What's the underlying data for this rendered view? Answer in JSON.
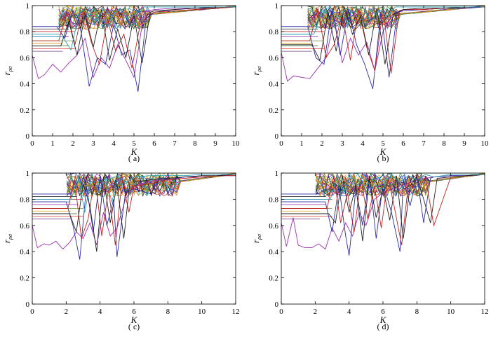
{
  "chart_data": [
    {
      "type": "line",
      "panel": "a",
      "caption": "( a)",
      "xlabel": "K",
      "ylabel": "r",
      "ylabel_sub": "ρσ",
      "xlim": [
        0,
        10
      ],
      "ylim": [
        0,
        1
      ],
      "xticks": [
        "0",
        "1",
        "2",
        "3",
        "4",
        "5",
        "6",
        "7",
        "8",
        "9",
        "10"
      ],
      "yticks": [
        "0",
        "0.2",
        "0.4",
        "0.6",
        "0.8",
        "1"
      ],
      "grid": false,
      "baselines": [
        0.84,
        0.82,
        0.8,
        0.78,
        0.76,
        0.73,
        0.71,
        0.69,
        0.67,
        0.65
      ],
      "series": [
        {
          "x": [
            0,
            0.3,
            0.6,
            1,
            1.4,
            1.8,
            2.2,
            2.6,
            3,
            3.4,
            3.8,
            4.2,
            4.6,
            5,
            5.5,
            6,
            7,
            8,
            9,
            10
          ],
          "y": [
            0.62,
            0.44,
            0.47,
            0.55,
            0.49,
            0.56,
            0.62,
            0.75,
            0.45,
            0.6,
            0.52,
            0.7,
            0.58,
            0.45,
            0.95,
            0.97,
            0.98,
            0.98,
            0.99,
            0.99
          ]
        },
        {
          "x": [
            0,
            1.2,
            1.6,
            2,
            2.4,
            2.8,
            3.2,
            3.6,
            4,
            4.4,
            4.8,
            5.2,
            5.6,
            6,
            7,
            8,
            9,
            10
          ],
          "y": [
            0.84,
            0.84,
            0.75,
            0.96,
            0.8,
            0.38,
            0.6,
            0.55,
            0.85,
            0.62,
            0.66,
            0.34,
            0.9,
            0.95,
            0.97,
            0.98,
            0.98,
            0.99
          ]
        },
        {
          "x": [
            0,
            1.3,
            1.7,
            2.1,
            2.5,
            2.9,
            3.3,
            3.7,
            4.1,
            4.5,
            4.9,
            5.3,
            5.7,
            6,
            7,
            8,
            9,
            10
          ],
          "y": [
            0.73,
            0.73,
            0.95,
            0.7,
            0.98,
            0.72,
            0.55,
            0.9,
            0.65,
            0.78,
            0.52,
            0.85,
            0.93,
            0.95,
            0.96,
            0.97,
            0.98,
            0.99
          ]
        },
        {
          "x": [
            0,
            1.4,
            1.8,
            2.2,
            2.6,
            3,
            3.4,
            3.8,
            4.2,
            4.6,
            5,
            5.4,
            5.8,
            6,
            7,
            8,
            9,
            10
          ],
          "y": [
            0.69,
            0.69,
            0.88,
            0.62,
            0.93,
            0.68,
            0.97,
            0.58,
            0.82,
            0.6,
            0.92,
            0.56,
            0.95,
            0.96,
            0.97,
            0.98,
            0.99,
            0.99
          ]
        },
        {
          "x": [
            0,
            1.5,
            1.9,
            2.3,
            2.7,
            3.1,
            3.5,
            3.9,
            4.3,
            4.7,
            5.1,
            5.5,
            6,
            7,
            8,
            9,
            10
          ],
          "y": [
            0.76,
            0.76,
            0.66,
            0.94,
            0.99,
            0.88,
            0.97,
            0.92,
            0.98,
            0.9,
            0.94,
            0.99,
            0.99,
            0.99,
            0.99,
            0.99,
            0.99
          ]
        }
      ]
    },
    {
      "type": "line",
      "panel": "b",
      "caption": "( b)",
      "xlabel": "K",
      "ylabel": "r",
      "ylabel_sub": "ρσ",
      "xlim": [
        0,
        10
      ],
      "ylim": [
        0,
        1
      ],
      "xticks": [
        "0",
        "1",
        "2",
        "3",
        "4",
        "5",
        "6",
        "7",
        "8",
        "9",
        "10"
      ],
      "yticks": [
        "0",
        "0.2",
        "0.4",
        "0.6",
        "0.8",
        "1"
      ],
      "grid": false,
      "baselines": [
        0.84,
        0.82,
        0.8,
        0.78,
        0.76,
        0.73,
        0.71,
        0.69,
        0.67,
        0.65
      ],
      "series": [
        {
          "x": [
            0,
            0.3,
            0.6,
            1,
            1.4,
            1.8,
            2.2,
            2.6,
            3,
            3.4,
            3.8,
            4.2,
            4.6,
            5,
            5.5,
            6,
            7,
            8,
            9,
            10
          ],
          "y": [
            0.64,
            0.42,
            0.46,
            0.45,
            0.44,
            0.52,
            0.6,
            0.9,
            0.56,
            0.75,
            0.62,
            0.72,
            0.5,
            0.8,
            0.94,
            0.96,
            0.97,
            0.98,
            0.98,
            0.99
          ]
        },
        {
          "x": [
            0,
            1.3,
            1.7,
            2.1,
            2.5,
            2.9,
            3.3,
            3.7,
            4.1,
            4.5,
            4.9,
            5.3,
            5.7,
            6,
            7,
            8,
            9,
            10
          ],
          "y": [
            0.84,
            0.84,
            0.6,
            0.55,
            0.98,
            0.62,
            0.97,
            0.7,
            0.55,
            0.36,
            0.95,
            0.45,
            0.95,
            0.96,
            0.97,
            0.98,
            0.98,
            0.99
          ]
        },
        {
          "x": [
            0,
            1.4,
            1.8,
            2.2,
            2.6,
            3,
            3.4,
            3.8,
            4.2,
            4.6,
            5,
            5.4,
            5.8,
            6,
            7,
            8,
            9,
            10
          ],
          "y": [
            0.73,
            0.73,
            0.98,
            0.6,
            0.7,
            0.93,
            0.58,
            0.98,
            0.68,
            0.5,
            0.97,
            0.48,
            0.96,
            0.97,
            0.97,
            0.98,
            0.99,
            0.99
          ]
        },
        {
          "x": [
            0,
            1.5,
            1.9,
            2.3,
            2.7,
            3.1,
            3.5,
            3.9,
            4.3,
            4.7,
            5.1,
            5.5,
            6,
            7,
            8,
            9,
            10
          ],
          "y": [
            0.7,
            0.7,
            0.58,
            0.95,
            0.65,
            0.99,
            0.78,
            0.92,
            0.62,
            0.98,
            0.55,
            0.93,
            0.97,
            0.98,
            0.98,
            0.99,
            0.99
          ]
        },
        {
          "x": [
            0,
            1.6,
            2,
            2.4,
            2.8,
            3.2,
            3.6,
            4,
            4.4,
            4.8,
            5.2,
            5.6,
            6,
            7,
            8,
            9,
            10
          ],
          "y": [
            0.78,
            0.78,
            0.96,
            0.99,
            0.9,
            0.98,
            0.95,
            0.99,
            0.88,
            0.97,
            0.92,
            0.99,
            0.99,
            0.99,
            0.99,
            0.99,
            0.99
          ]
        }
      ]
    },
    {
      "type": "line",
      "panel": "c",
      "caption": "( c)",
      "xlabel": "K",
      "ylabel": "r",
      "ylabel_sub": "ρσ",
      "xlim": [
        0,
        12
      ],
      "ylim": [
        0,
        1
      ],
      "xticks": [
        "0",
        "2",
        "4",
        "6",
        "8",
        "10",
        "12"
      ],
      "yticks": [
        "0",
        "0.2",
        "0.4",
        "0.6",
        "0.8",
        "1"
      ],
      "grid": false,
      "baselines": [
        0.84,
        0.82,
        0.8,
        0.78,
        0.76,
        0.73,
        0.71,
        0.69,
        0.67,
        0.65
      ],
      "series": [
        {
          "x": [
            0,
            0.3,
            0.7,
            1,
            1.4,
            1.8,
            2.2,
            2.6,
            3,
            3.4,
            3.8,
            4.2,
            4.6,
            5,
            5.5,
            6,
            7,
            8,
            9,
            10,
            11,
            12
          ],
          "y": [
            0.6,
            0.43,
            0.46,
            0.45,
            0.48,
            0.42,
            0.47,
            0.55,
            0.5,
            0.62,
            0.45,
            0.7,
            0.52,
            0.58,
            0.8,
            0.9,
            0.94,
            0.95,
            0.97,
            0.97,
            0.98,
            0.98
          ]
        },
        {
          "x": [
            0,
            2,
            2.4,
            2.8,
            3.2,
            3.6,
            4,
            4.4,
            4.8,
            5,
            5.5,
            6,
            7,
            7.5,
            8,
            9,
            10,
            11,
            12
          ],
          "y": [
            0.78,
            0.78,
            0.6,
            0.34,
            0.9,
            0.55,
            0.98,
            0.6,
            0.8,
            0.36,
            0.85,
            0.88,
            0.84,
            0.96,
            0.95,
            0.97,
            0.97,
            0.98,
            0.98
          ]
        },
        {
          "x": [
            0,
            2.1,
            2.5,
            2.9,
            3.3,
            3.7,
            4.1,
            4.5,
            4.9,
            5.3,
            5.7,
            6,
            7,
            8,
            9,
            10,
            11,
            12
          ],
          "y": [
            0.73,
            0.73,
            0.95,
            0.5,
            0.65,
            0.98,
            0.52,
            0.88,
            0.45,
            0.95,
            0.7,
            0.9,
            0.92,
            0.95,
            0.96,
            0.97,
            0.98,
            0.98
          ]
        },
        {
          "x": [
            0,
            2.2,
            2.6,
            3,
            3.4,
            3.8,
            4.2,
            4.6,
            5,
            5.4,
            5.8,
            6,
            7,
            8,
            9,
            10,
            11,
            12
          ],
          "y": [
            0.69,
            0.69,
            0.55,
            0.92,
            0.75,
            0.4,
            0.97,
            0.62,
            0.92,
            0.5,
            0.98,
            0.93,
            0.95,
            0.96,
            0.97,
            0.98,
            0.98,
            0.99
          ]
        },
        {
          "x": [
            0,
            2.3,
            2.7,
            3.1,
            3.5,
            3.9,
            4.3,
            4.7,
            5.1,
            5.5,
            6,
            7,
            8,
            9,
            10,
            11,
            12
          ],
          "y": [
            0.8,
            0.8,
            0.98,
            0.7,
            0.99,
            0.85,
            0.96,
            0.78,
            0.99,
            0.92,
            0.97,
            0.98,
            0.98,
            0.98,
            0.99,
            0.99,
            0.99
          ]
        }
      ]
    },
    {
      "type": "line",
      "panel": "d",
      "caption": "( d)",
      "xlabel": "K",
      "ylabel": "r",
      "ylabel_sub": "ρσ",
      "xlim": [
        0,
        12
      ],
      "ylim": [
        0,
        1
      ],
      "xticks": [
        "0",
        "2",
        "4",
        "6",
        "8",
        "10",
        "12"
      ],
      "yticks": [
        "0",
        "0.2",
        "0.4",
        "0.6",
        "0.8",
        "1"
      ],
      "grid": false,
      "baselines": [
        0.84,
        0.82,
        0.8,
        0.78,
        0.76,
        0.73,
        0.71,
        0.69,
        0.67,
        0.65
      ],
      "series": [
        {
          "x": [
            0,
            0.3,
            0.7,
            1,
            1.4,
            1.8,
            2.2,
            2.6,
            3,
            3.4,
            3.8,
            4.2,
            4.6,
            5,
            5.5,
            6,
            7,
            8,
            9,
            10,
            11,
            12
          ],
          "y": [
            0.62,
            0.44,
            0.66,
            0.45,
            0.43,
            0.43,
            0.46,
            0.42,
            0.58,
            0.48,
            0.62,
            0.52,
            0.7,
            0.6,
            0.8,
            0.85,
            0.9,
            0.95,
            0.97,
            0.98,
            0.98,
            0.99
          ]
        },
        {
          "x": [
            0,
            2.6,
            3,
            3.4,
            3.8,
            4,
            4.4,
            4.8,
            5.2,
            5.6,
            6,
            6.5,
            7,
            7.2,
            7.6,
            8,
            8.4,
            8.8,
            9,
            10,
            11,
            12
          ],
          "y": [
            0.78,
            0.78,
            0.55,
            0.9,
            0.52,
            0.37,
            0.88,
            0.6,
            0.98,
            0.5,
            0.92,
            0.7,
            0.4,
            0.95,
            0.75,
            0.98,
            0.62,
            0.96,
            0.97,
            0.98,
            0.98,
            0.99
          ]
        },
        {
          "x": [
            0,
            2.7,
            3.1,
            3.5,
            3.9,
            4.3,
            4.7,
            5.1,
            5.5,
            5.9,
            6.3,
            6.7,
            7.1,
            7.5,
            8,
            8.5,
            9,
            10,
            11,
            12
          ],
          "y": [
            0.73,
            0.73,
            0.98,
            0.62,
            0.85,
            0.55,
            0.96,
            0.65,
            0.9,
            0.58,
            0.97,
            0.72,
            0.45,
            0.92,
            0.85,
            0.97,
            0.6,
            0.97,
            0.98,
            0.99
          ]
        },
        {
          "x": [
            0,
            2.8,
            3.2,
            3.6,
            4,
            4.4,
            4.8,
            5.2,
            5.6,
            6,
            6.4,
            6.8,
            7.2,
            7.6,
            8,
            8.4,
            8.8,
            9.2,
            10,
            11,
            12
          ],
          "y": [
            0.69,
            0.69,
            0.62,
            0.98,
            0.7,
            0.9,
            0.48,
            0.96,
            0.66,
            0.88,
            0.64,
            0.98,
            0.5,
            0.9,
            0.97,
            0.8,
            0.62,
            0.96,
            0.97,
            0.98,
            0.99
          ]
        },
        {
          "x": [
            0,
            2.9,
            3.3,
            3.7,
            4.1,
            4.5,
            4.9,
            5.3,
            5.7,
            6.1,
            6.5,
            7,
            7.5,
            8,
            8.5,
            9,
            10,
            11,
            12
          ],
          "y": [
            0.8,
            0.8,
            0.99,
            0.85,
            0.98,
            0.9,
            0.99,
            0.88,
            0.97,
            0.92,
            0.99,
            0.93,
            0.98,
            0.95,
            0.99,
            0.97,
            0.99,
            0.99,
            0.99
          ]
        }
      ]
    }
  ],
  "colors": {
    "series": [
      "#9b2fae",
      "#2b2ba8",
      "#c02020",
      "#222222",
      "#2aa0b8"
    ],
    "baselines": [
      "#2b2ba8",
      "#1a1a1a",
      "#c02020",
      "#2aa0b8",
      "#9b2fae",
      "#6b8a2a",
      "#d4a017",
      "#2b6b2b",
      "#e05050",
      "#7a4a9a"
    ],
    "top_band": [
      "#3c8c3c",
      "#d4a017",
      "#c02020",
      "#2b2ba8",
      "#1a1a1a",
      "#2aa0b8",
      "#9b2fae",
      "#e07a20"
    ]
  }
}
